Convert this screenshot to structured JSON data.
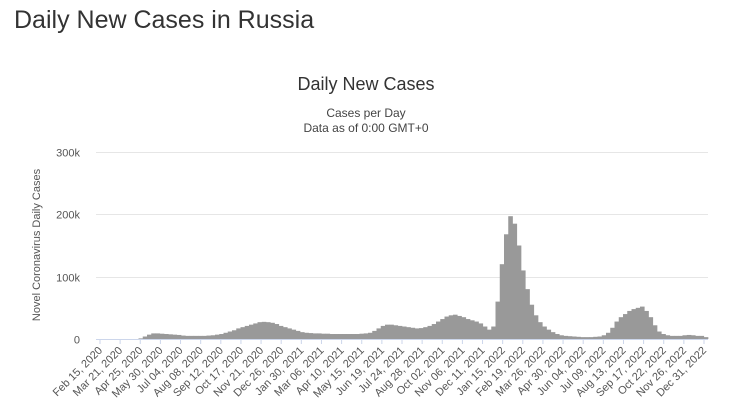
{
  "page": {
    "title": "Daily New Cases in Russia"
  },
  "chart_data": {
    "type": "bar",
    "title": "Daily New Cases",
    "subtitle_lines": [
      "Cases per Day",
      "Data as of 0:00 GMT+0"
    ],
    "ylabel": "Novel Coronavirus Daily Cases",
    "xlabel": "",
    "ylim": [
      0,
      300000
    ],
    "y_ticks": [
      {
        "value": 0,
        "label": "0"
      },
      {
        "value": 100000,
        "label": "100k"
      },
      {
        "value": 200000,
        "label": "200k"
      },
      {
        "value": 300000,
        "label": "300k"
      }
    ],
    "x_tick_labels": [
      "Feb 15, 2020",
      "Mar 21, 2020",
      "Apr 25, 2020",
      "May 30, 2020",
      "Jul 04, 2020",
      "Aug 08, 2020",
      "Sep 12, 2020",
      "Oct 17, 2020",
      "Nov 21, 2020",
      "Dec 26, 2020",
      "Jan 30, 2021",
      "Mar 06, 2021",
      "Apr 10, 2021",
      "May 15, 2021",
      "Jun 19, 2021",
      "Jul 24, 2021",
      "Aug 28, 2021",
      "Oct 02, 2021",
      "Nov 06, 2021",
      "Dec 11, 2021",
      "Jan 15, 2022",
      "Feb 19, 2022",
      "Mar 26, 2022",
      "Apr 30, 2022",
      "Jun 04, 2022",
      "Jul 09, 2022",
      "Aug 13, 2022",
      "Sep 17, 2022",
      "Oct 22, 2022",
      "Nov 26, 2022",
      "Dec 31, 2022"
    ],
    "grid": true,
    "legend": "none",
    "bar_color": "#999999",
    "series": [
      {
        "values": [
          0,
          0,
          0,
          0,
          0,
          0,
          0,
          0,
          0,
          0,
          1000,
          4000,
          7000,
          9000,
          9000,
          8500,
          8000,
          7500,
          7000,
          6500,
          5500,
          5000,
          5000,
          5000,
          5000,
          5000,
          5500,
          6000,
          7000,
          8000,
          10000,
          12000,
          14000,
          17000,
          19000,
          21000,
          23000,
          25000,
          27000,
          27500,
          27000,
          26000,
          24000,
          21000,
          19000,
          17000,
          15000,
          13000,
          11000,
          10000,
          9500,
          9000,
          9000,
          8500,
          8500,
          8000,
          8000,
          8000,
          8000,
          8000,
          8000,
          8000,
          8500,
          9000,
          10000,
          13000,
          17000,
          21000,
          23000,
          23000,
          22000,
          21000,
          20000,
          19000,
          18000,
          17000,
          17500,
          19000,
          21000,
          24000,
          28000,
          32000,
          36000,
          38000,
          39000,
          37000,
          35000,
          32000,
          30000,
          28000,
          25000,
          20000,
          15000,
          20000,
          60000,
          120000,
          168000,
          197000,
          185000,
          150000,
          110000,
          80000,
          55000,
          38000,
          27000,
          20000,
          15000,
          11000,
          8000,
          6000,
          5000,
          4500,
          4000,
          3500,
          3000,
          3000,
          3000,
          3500,
          4000,
          6000,
          10000,
          18000,
          28000,
          35000,
          40000,
          45000,
          48000,
          50000,
          52000,
          45000,
          35000,
          22000,
          12000,
          8000,
          6000,
          5000,
          5000,
          5000,
          6000,
          6500,
          6000,
          5000,
          5000,
          3000
        ]
      }
    ]
  }
}
